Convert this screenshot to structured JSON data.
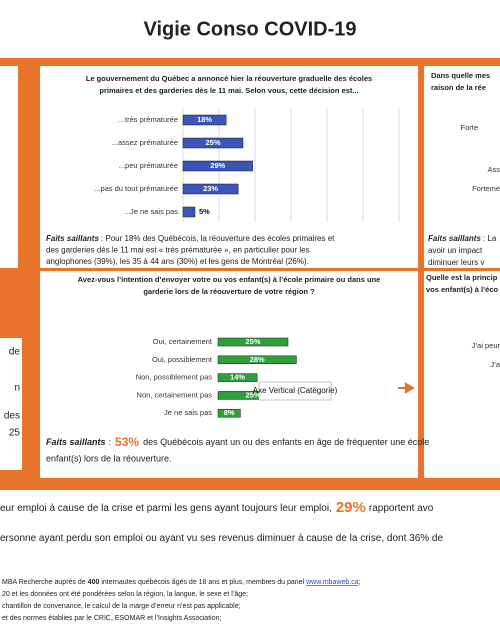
{
  "header": {
    "title": "Vigie Conso COVID-19"
  },
  "chart_data": [
    {
      "type": "hbar",
      "title_lines": [
        "Le gouvernement du Québec a annoncé hier la réouverture graduelle des écoles",
        "primaires et des garderies dès le 11 mai. Selon vous, cette décision est..."
      ],
      "categories": [
        "...très prématurée",
        "...assez prématurée",
        "...peu prématurée",
        "...pas du tout prématurée",
        "...Je ne sais pas"
      ],
      "values": [
        18,
        25,
        29,
        23,
        5
      ],
      "value_labels": [
        "18%",
        "25%",
        "29%",
        "23%",
        "5%"
      ],
      "color": "#3b56b8",
      "xlim": [
        0,
        90
      ],
      "xticks": [
        0,
        15,
        30,
        45,
        60,
        75,
        90
      ],
      "grid": true,
      "note": {
        "label": "Faits saillants",
        "lines": [
          ": Pour 18% des Québécois, la réouverture des écoles primaires et",
          "des garderies dès le 11 mai est « très prématurée », en particulier pour les",
          "anglophones (39%), les 35 à 44 ans (30%) et les gens de Montréal (26%)."
        ]
      }
    },
    {
      "type": "hbar",
      "title_lines": [
        "Avez-vous l’intention d’envoyer votre ou vos enfant(s) à l’école primaire ou dans une",
        "garderie lors de la réouverture de votre région ?"
      ],
      "categories": [
        "Oui, certainement",
        "Oui, possiblement",
        "Non, possiblement pas",
        "Non, certainement pas",
        "Je ne sais pas"
      ],
      "values": [
        25,
        28,
        14,
        25,
        8
      ],
      "value_labels": [
        "25%",
        "28%",
        "14%",
        "25%",
        "8%"
      ],
      "color": "#2f9e3c",
      "xlim": [
        0,
        70
      ],
      "grid": false,
      "note": {
        "label": "Faits saillants",
        "sep": ":",
        "highlight": "53%",
        "lines": [
          "des Québécois ayant un ou des enfants en âge de fréquenter une école",
          "enfant(s) lors de la réouverture."
        ]
      }
    }
  ],
  "right_panel_top": {
    "title_lines": [
      "Dans quelle mes",
      "raison de la rée"
    ],
    "labels": [
      "Forte",
      "Ass",
      "Forteme"
    ],
    "note": {
      "label": "Faits saillants",
      "lines": [
        ": La",
        "avoir un impact",
        "diminuer leurs v"
      ]
    }
  },
  "right_panel_bottom": {
    "title_lines": [
      "Quelle est la princip",
      "vos enfant(s) à l’éco"
    ],
    "labels": [
      "J’ai peur",
      "J’a"
    ]
  },
  "left_fragments": [
    "de",
    "n",
    "des",
    "25"
  ],
  "tooltip": "Axe Vertical (Catégorie)",
  "body_lines": [
    {
      "before": "eur emploi à cause de la crise et parmi les gens ayant toujours leur emploi,",
      "highlight": "29%",
      "after": "rapportent avo"
    },
    {
      "before": "ersonne ayant perdu son emploi ou ayant vu ses revenus diminuer à cause de la crise, dont 36% de"
    }
  ],
  "footnotes": [
    {
      "before": "MBA Recherche auprès de",
      "bold": "400",
      "middle": "internautes québécois âgés de 18 ans et plus, membres du panel",
      "link": "www.mbaweb.ca",
      "after": ";"
    },
    {
      "before": "20 et les données ont été pondérées selon la région, la langue, le sexe et l’âge;"
    },
    {
      "before": "chantillon de convenance, le calcul de la marge d’erreur n’est pas applicable;"
    },
    {
      "before": "et des normes établies par le CRIC, ESOMAR et l’Insights Association;"
    }
  ]
}
